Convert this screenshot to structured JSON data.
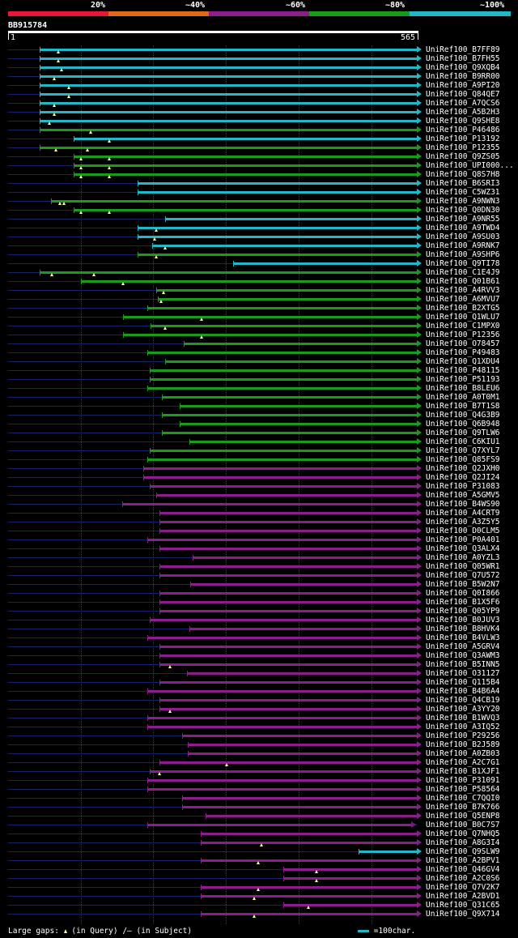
{
  "legend": {
    "items": [
      {
        "label": "20%",
        "color": "#e8173a"
      },
      {
        "label": "~40%",
        "color": "#e06a1a"
      },
      {
        "label": "~60%",
        "color": "#8c1e8c"
      },
      {
        "label": "~80%",
        "color": "#1a9c1a"
      },
      {
        "label": "~100%",
        "color": "#20b8c8"
      }
    ]
  },
  "query": {
    "id": "BB915784",
    "start_label": "1",
    "end_label": "565",
    "length": 565
  },
  "colors": {
    "cyan": "#20b8c8",
    "green": "#1a9c1a",
    "purple": "#8c1e8c",
    "query": "#162364",
    "mark": "#ffff99"
  },
  "hits": [
    {
      "name": "UniRef100_B7FF89",
      "color": "cyan",
      "start": 44,
      "end": 565,
      "gaps": [],
      "marks": [
        70
      ]
    },
    {
      "name": "UniRef100_B7FH55",
      "color": "cyan",
      "start": 44,
      "end": 565,
      "gaps": [],
      "marks": [
        70
      ]
    },
    {
      "name": "UniRef100_Q9XQB4",
      "color": "cyan",
      "start": 44,
      "end": 565,
      "gaps": [],
      "marks": [
        75
      ]
    },
    {
      "name": "UniRef100_B9RR00",
      "color": "cyan",
      "start": 44,
      "end": 565,
      "gaps": [],
      "marks": [
        65
      ]
    },
    {
      "name": "UniRef100_A9PI20",
      "color": "cyan",
      "start": 44,
      "end": 565,
      "gaps": [],
      "marks": [
        85
      ]
    },
    {
      "name": "UniRef100_Q84QE7",
      "color": "cyan",
      "start": 44,
      "end": 565,
      "gaps": [],
      "marks": [
        85
      ]
    },
    {
      "name": "UniRef100_A7QCS6",
      "color": "cyan",
      "start": 44,
      "end": 565,
      "gaps": [],
      "marks": [
        65
      ]
    },
    {
      "name": "UniRef100_A5B2H3",
      "color": "cyan",
      "start": 44,
      "end": 565,
      "gaps": [],
      "marks": [
        65
      ]
    },
    {
      "name": "UniRef100_Q9SHE8",
      "color": "cyan",
      "start": 44,
      "end": 565,
      "gaps": [],
      "marks": [
        58
      ]
    },
    {
      "name": "UniRef100_P46486",
      "color": "green",
      "start": 44,
      "end": 565,
      "gaps": [],
      "marks": [
        115
      ]
    },
    {
      "name": "UniRef100_P13192",
      "color": "cyan",
      "start": 92,
      "end": 565,
      "gaps": [],
      "marks": [
        141
      ]
    },
    {
      "name": "UniRef100_P12355",
      "color": "green",
      "start": 44,
      "end": 565,
      "gaps": [],
      "marks": [
        67,
        110
      ]
    },
    {
      "name": "UniRef100_Q9ZS05",
      "color": "green",
      "start": 92,
      "end": 565,
      "gaps": [],
      "marks": [
        101,
        141
      ]
    },
    {
      "name": "UniRef100_UPI000...",
      "color": "green",
      "start": 92,
      "end": 565,
      "gaps": [],
      "marks": [
        101,
        141
      ]
    },
    {
      "name": "UniRef100_Q8S7H8",
      "color": "green",
      "start": 92,
      "end": 565,
      "gaps": [],
      "marks": [
        101,
        141
      ]
    },
    {
      "name": "UniRef100_B6SRI3",
      "color": "cyan",
      "start": 180,
      "end": 565,
      "gaps": [],
      "marks": []
    },
    {
      "name": "UniRef100_C5WZ31",
      "color": "cyan",
      "start": 180,
      "end": 565,
      "gaps": [],
      "marks": []
    },
    {
      "name": "UniRef100_A9NWN3",
      "color": "green",
      "start": 60,
      "end": 565,
      "gaps": [],
      "marks": [
        73,
        78
      ]
    },
    {
      "name": "UniRef100_Q0DN30",
      "color": "green",
      "start": 92,
      "end": 565,
      "gaps": [],
      "marks": [
        101,
        141
      ]
    },
    {
      "name": "UniRef100_A9NR55",
      "color": "cyan",
      "start": 218,
      "end": 565,
      "gaps": [],
      "marks": []
    },
    {
      "name": "UniRef100_A9TWD4",
      "color": "cyan",
      "start": 180,
      "end": 565,
      "gaps": [],
      "marks": [
        205
      ]
    },
    {
      "name": "UniRef100_A9SU03",
      "color": "cyan",
      "start": 180,
      "end": 565,
      "gaps": [],
      "marks": [
        203
      ]
    },
    {
      "name": "UniRef100_A9RNK7",
      "color": "cyan",
      "start": 200,
      "end": 565,
      "gaps": [],
      "marks": [
        218
      ]
    },
    {
      "name": "UniRef100_A9SHP6",
      "color": "green",
      "start": 180,
      "end": 565,
      "gaps": [],
      "marks": [
        205
      ]
    },
    {
      "name": "UniRef100_Q9TI78",
      "color": "cyan",
      "start": 312,
      "end": 565,
      "gaps": [],
      "marks": []
    },
    {
      "name": "UniRef100_C1E4J9",
      "color": "green",
      "start": 44,
      "end": 565,
      "gaps": [],
      "marks": [
        61,
        119
      ]
    },
    {
      "name": "UniRef100_Q01B61",
      "color": "green",
      "start": 101,
      "end": 565,
      "gaps": [],
      "marks": [
        160
      ]
    },
    {
      "name": "UniRef100_A4RVV3",
      "color": "green",
      "start": 205,
      "end": 565,
      "gaps": [],
      "marks": [
        215
      ]
    },
    {
      "name": "UniRef100_A6MVU7",
      "color": "green",
      "start": 208,
      "end": 565,
      "gaps": [],
      "marks": [
        212
      ]
    },
    {
      "name": "UniRef100_B2XTG5",
      "color": "green",
      "start": 193,
      "end": 565,
      "gaps": [],
      "marks": []
    },
    {
      "name": "UniRef100_Q1WLU7",
      "color": "green",
      "start": 160,
      "end": 565,
      "gaps": [],
      "marks": [
        268
      ]
    },
    {
      "name": "UniRef100_C1MPX0",
      "color": "green",
      "start": 198,
      "end": 565,
      "gaps": [],
      "marks": [
        218
      ]
    },
    {
      "name": "UniRef100_P12356",
      "color": "green",
      "start": 160,
      "end": 565,
      "gaps": [],
      "marks": [
        268
      ]
    },
    {
      "name": "UniRef100_O78457",
      "color": "green",
      "start": 243,
      "end": 565,
      "gaps": [],
      "marks": []
    },
    {
      "name": "UniRef100_P49483",
      "color": "green",
      "start": 193,
      "end": 565,
      "gaps": [],
      "marks": []
    },
    {
      "name": "UniRef100_Q1XDU4",
      "color": "green",
      "start": 218,
      "end": 565,
      "gaps": [],
      "marks": []
    },
    {
      "name": "UniRef100_P48115",
      "color": "green",
      "start": 196,
      "end": 565,
      "gaps": [],
      "marks": []
    },
    {
      "name": "UniRef100_P51193",
      "color": "green",
      "start": 196,
      "end": 565,
      "gaps": [],
      "marks": []
    },
    {
      "name": "UniRef100_B8LEU6",
      "color": "green",
      "start": 193,
      "end": 565,
      "gaps": [],
      "marks": []
    },
    {
      "name": "UniRef100_A0T0M1",
      "color": "green",
      "start": 213,
      "end": 565,
      "gaps": [],
      "marks": []
    },
    {
      "name": "UniRef100_B7T1S8",
      "color": "green",
      "start": 238,
      "end": 565,
      "gaps": [],
      "marks": []
    },
    {
      "name": "UniRef100_Q4G3B9",
      "color": "green",
      "start": 213,
      "end": 565,
      "gaps": [],
      "marks": []
    },
    {
      "name": "UniRef100_Q6B948",
      "color": "green",
      "start": 238,
      "end": 565,
      "gaps": [],
      "marks": []
    },
    {
      "name": "UniRef100_Q9TLW6",
      "color": "green",
      "start": 213,
      "end": 565,
      "gaps": [],
      "marks": []
    },
    {
      "name": "UniRef100_C6KIU1",
      "color": "green",
      "start": 251,
      "end": 565,
      "gaps": [],
      "marks": []
    },
    {
      "name": "UniRef100_Q7XYL7",
      "color": "green",
      "start": 196,
      "end": 565,
      "gaps": [],
      "marks": []
    },
    {
      "name": "UniRef100_Q85FS9",
      "color": "green",
      "start": 193,
      "end": 565,
      "gaps": [],
      "marks": []
    },
    {
      "name": "UniRef100_Q2JXH0",
      "color": "purple",
      "start": 188,
      "end": 565,
      "gaps": [],
      "marks": []
    },
    {
      "name": "UniRef100_Q2JI24",
      "color": "purple",
      "start": 188,
      "end": 565,
      "gaps": [],
      "marks": []
    },
    {
      "name": "UniRef100_P31083",
      "color": "purple",
      "start": 196,
      "end": 565,
      "gaps": [],
      "marks": []
    },
    {
      "name": "UniRef100_A5GMV5",
      "color": "purple",
      "start": 205,
      "end": 565,
      "gaps": [],
      "marks": []
    },
    {
      "name": "UniRef100_B4WS90",
      "color": "purple",
      "start": 159,
      "end": 565,
      "gaps": [],
      "marks": []
    },
    {
      "name": "UniRef100_A4CRT9",
      "color": "purple",
      "start": 210,
      "end": 565,
      "gaps": [],
      "marks": []
    },
    {
      "name": "UniRef100_A3Z5Y5",
      "color": "purple",
      "start": 210,
      "end": 565,
      "gaps": [],
      "marks": []
    },
    {
      "name": "UniRef100_D0CLM5",
      "color": "purple",
      "start": 210,
      "end": 565,
      "gaps": [],
      "marks": []
    },
    {
      "name": "UniRef100_P0A401",
      "color": "purple",
      "start": 193,
      "end": 565,
      "gaps": [],
      "marks": []
    },
    {
      "name": "UniRef100_Q3ALX4",
      "color": "purple",
      "start": 210,
      "end": 565,
      "gaps": [],
      "marks": []
    },
    {
      "name": "UniRef100_A0YZL3",
      "color": "purple",
      "start": 256,
      "end": 565,
      "gaps": [],
      "marks": []
    },
    {
      "name": "UniRef100_Q05WR1",
      "color": "purple",
      "start": 210,
      "end": 565,
      "gaps": [],
      "marks": []
    },
    {
      "name": "UniRef100_Q7U572",
      "color": "purple",
      "start": 210,
      "end": 565,
      "gaps": [],
      "marks": []
    },
    {
      "name": "UniRef100_B5W2N7",
      "color": "purple",
      "start": 252,
      "end": 565,
      "gaps": [],
      "marks": []
    },
    {
      "name": "UniRef100_Q0I866",
      "color": "purple",
      "start": 210,
      "end": 565,
      "gaps": [],
      "marks": []
    },
    {
      "name": "UniRef100_B1X5F6",
      "color": "purple",
      "start": 210,
      "end": 565,
      "gaps": [],
      "marks": []
    },
    {
      "name": "UniRef100_Q05YP9",
      "color": "purple",
      "start": 210,
      "end": 565,
      "gaps": [],
      "marks": []
    },
    {
      "name": "UniRef100_B0JUV3",
      "color": "purple",
      "start": 196,
      "end": 565,
      "gaps": [],
      "marks": []
    },
    {
      "name": "UniRef100_B8HVK4",
      "color": "purple",
      "start": 251,
      "end": 565,
      "gaps": [],
      "marks": []
    },
    {
      "name": "UniRef100_B4VLW3",
      "color": "purple",
      "start": 193,
      "end": 565,
      "gaps": [],
      "marks": []
    },
    {
      "name": "UniRef100_A5GRV4",
      "color": "purple",
      "start": 210,
      "end": 565,
      "gaps": [],
      "marks": []
    },
    {
      "name": "UniRef100_Q3AWM3",
      "color": "purple",
      "start": 210,
      "end": 565,
      "gaps": [],
      "marks": []
    },
    {
      "name": "UniRef100_B5INN5",
      "color": "purple",
      "start": 210,
      "end": 565,
      "gaps": [],
      "marks": [
        224
      ]
    },
    {
      "name": "UniRef100_O31127",
      "color": "purple",
      "start": 248,
      "end": 565,
      "gaps": [],
      "marks": []
    },
    {
      "name": "UniRef100_Q115B4",
      "color": "purple",
      "start": 210,
      "end": 565,
      "gaps": [],
      "marks": []
    },
    {
      "name": "UniRef100_B4B6A4",
      "color": "purple",
      "start": 193,
      "end": 565,
      "gaps": [],
      "marks": []
    },
    {
      "name": "UniRef100_Q4CB19",
      "color": "purple",
      "start": 210,
      "end": 565,
      "gaps": [],
      "marks": []
    },
    {
      "name": "UniRef100_A3YY20",
      "color": "purple",
      "start": 210,
      "end": 565,
      "gaps": [],
      "marks": [
        224
      ]
    },
    {
      "name": "UniRef100_B1WVQ3",
      "color": "purple",
      "start": 193,
      "end": 565,
      "gaps": [],
      "marks": []
    },
    {
      "name": "UniRef100_A3IQ52",
      "color": "purple",
      "start": 193,
      "end": 565,
      "gaps": [],
      "marks": []
    },
    {
      "name": "UniRef100_P29256",
      "color": "purple",
      "start": 241,
      "end": 565,
      "gaps": [],
      "marks": []
    },
    {
      "name": "UniRef100_B2J589",
      "color": "purple",
      "start": 249,
      "end": 565,
      "gaps": [],
      "marks": []
    },
    {
      "name": "UniRef100_A0ZB03",
      "color": "purple",
      "start": 249,
      "end": 565,
      "gaps": [],
      "marks": []
    },
    {
      "name": "UniRef100_A2C7G1",
      "color": "purple",
      "start": 210,
      "end": 565,
      "gaps": [],
      "marks": [
        302
      ]
    },
    {
      "name": "UniRef100_B1XJF1",
      "color": "purple",
      "start": 196,
      "end": 565,
      "gaps": [],
      "marks": [
        210
      ]
    },
    {
      "name": "UniRef100_P31091",
      "color": "purple",
      "start": 193,
      "end": 565,
      "gaps": [],
      "marks": []
    },
    {
      "name": "UniRef100_P58564",
      "color": "purple",
      "start": 193,
      "end": 565,
      "gaps": [],
      "marks": []
    },
    {
      "name": "UniRef100_C7QQI0",
      "color": "purple",
      "start": 241,
      "end": 565,
      "gaps": [],
      "marks": []
    },
    {
      "name": "UniRef100_B7K766",
      "color": "purple",
      "start": 241,
      "end": 565,
      "gaps": [],
      "marks": []
    },
    {
      "name": "UniRef100_Q5ENP8",
      "color": "purple",
      "start": 274,
      "end": 565,
      "gaps": [],
      "marks": []
    },
    {
      "name": "UniRef100_B0C7S7",
      "color": "purple",
      "start": 193,
      "end": 557,
      "gaps": [],
      "marks": [],
      "hollow": true
    },
    {
      "name": "UniRef100_Q7NHQ5",
      "color": "purple",
      "start": 267,
      "end": 565,
      "gaps": [],
      "marks": []
    },
    {
      "name": "UniRef100_A8G3I4",
      "color": "purple",
      "start": 267,
      "end": 565,
      "gaps": [],
      "marks": [
        351
      ]
    },
    {
      "name": "UniRef100_Q9SLW9",
      "color": "cyan",
      "start": 485,
      "end": 565,
      "gaps": [],
      "marks": []
    },
    {
      "name": "UniRef100_A2BPV1",
      "color": "purple",
      "start": 267,
      "end": 565,
      "gaps": [],
      "marks": [
        346
      ]
    },
    {
      "name": "UniRef100_Q46GV4",
      "color": "purple",
      "start": 381,
      "end": 565,
      "gaps": [],
      "marks": [
        427
      ]
    },
    {
      "name": "UniRef100_A2C0S6",
      "color": "purple",
      "start": 381,
      "end": 565,
      "gaps": [],
      "marks": [
        427
      ]
    },
    {
      "name": "UniRef100_Q7V2K7",
      "color": "purple",
      "start": 267,
      "end": 565,
      "gaps": [],
      "marks": [
        346
      ]
    },
    {
      "name": "UniRef100_A2BVD1",
      "color": "purple",
      "start": 267,
      "end": 565,
      "gaps": [],
      "marks": [
        340
      ]
    },
    {
      "name": "UniRef100_Q31C65",
      "color": "purple",
      "start": 381,
      "end": 565,
      "gaps": [],
      "marks": [
        415
      ]
    },
    {
      "name": "UniRef100_Q9X714",
      "color": "purple",
      "start": 267,
      "end": 565,
      "gaps": [],
      "marks": [
        340
      ]
    }
  ],
  "footer": {
    "gaps_label": "Large gaps:",
    "in_query": "(in Query)",
    "in_subject": "/— (in Subject)",
    "scale_label": "=100char."
  }
}
